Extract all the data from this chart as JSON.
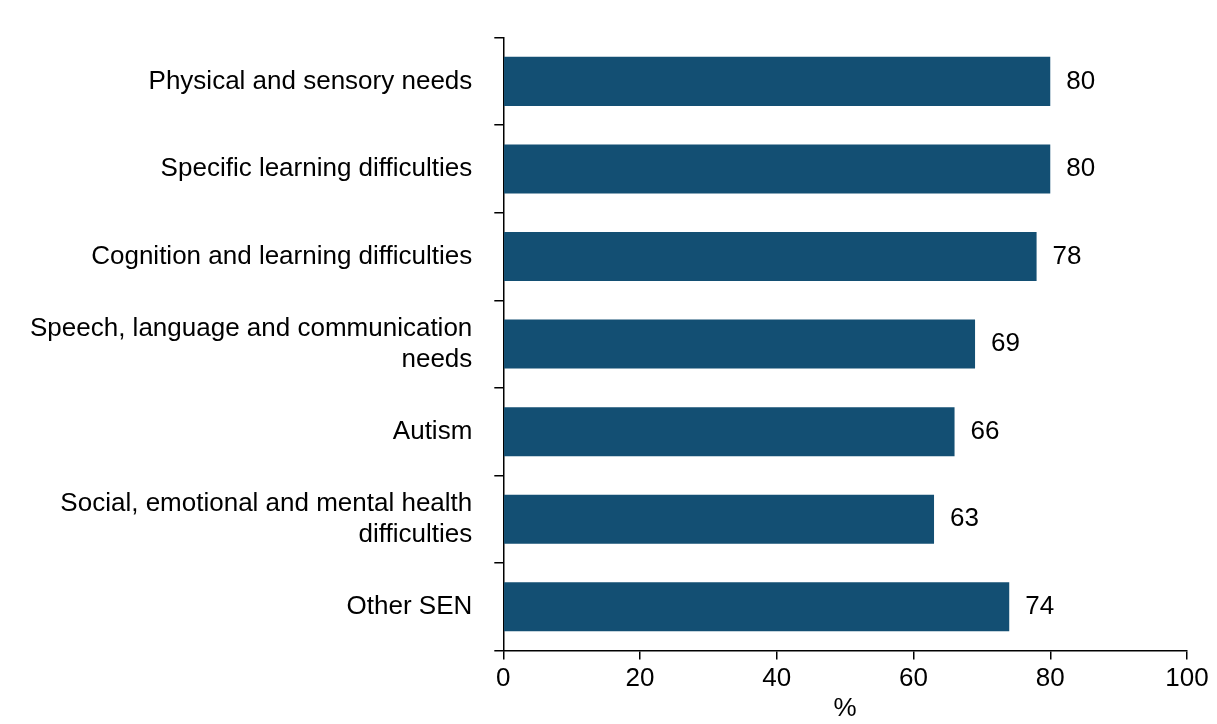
{
  "chart_data": {
    "type": "bar",
    "orientation": "horizontal",
    "categories": [
      "Physical and sensory needs",
      "Specific learning difficulties",
      "Cognition and learning difficulties",
      "Speech, language and communication needs",
      "Autism",
      "Social, emotional and mental health difficulties",
      "Other SEN"
    ],
    "values": [
      80,
      80,
      78,
      69,
      66,
      63,
      74
    ],
    "color": "#134f73",
    "xlim": [
      0,
      100
    ],
    "xticks": [
      0,
      20,
      40,
      60,
      80,
      100
    ],
    "xlabel": "%",
    "data_labels": true,
    "legend": false,
    "grid": false
  }
}
